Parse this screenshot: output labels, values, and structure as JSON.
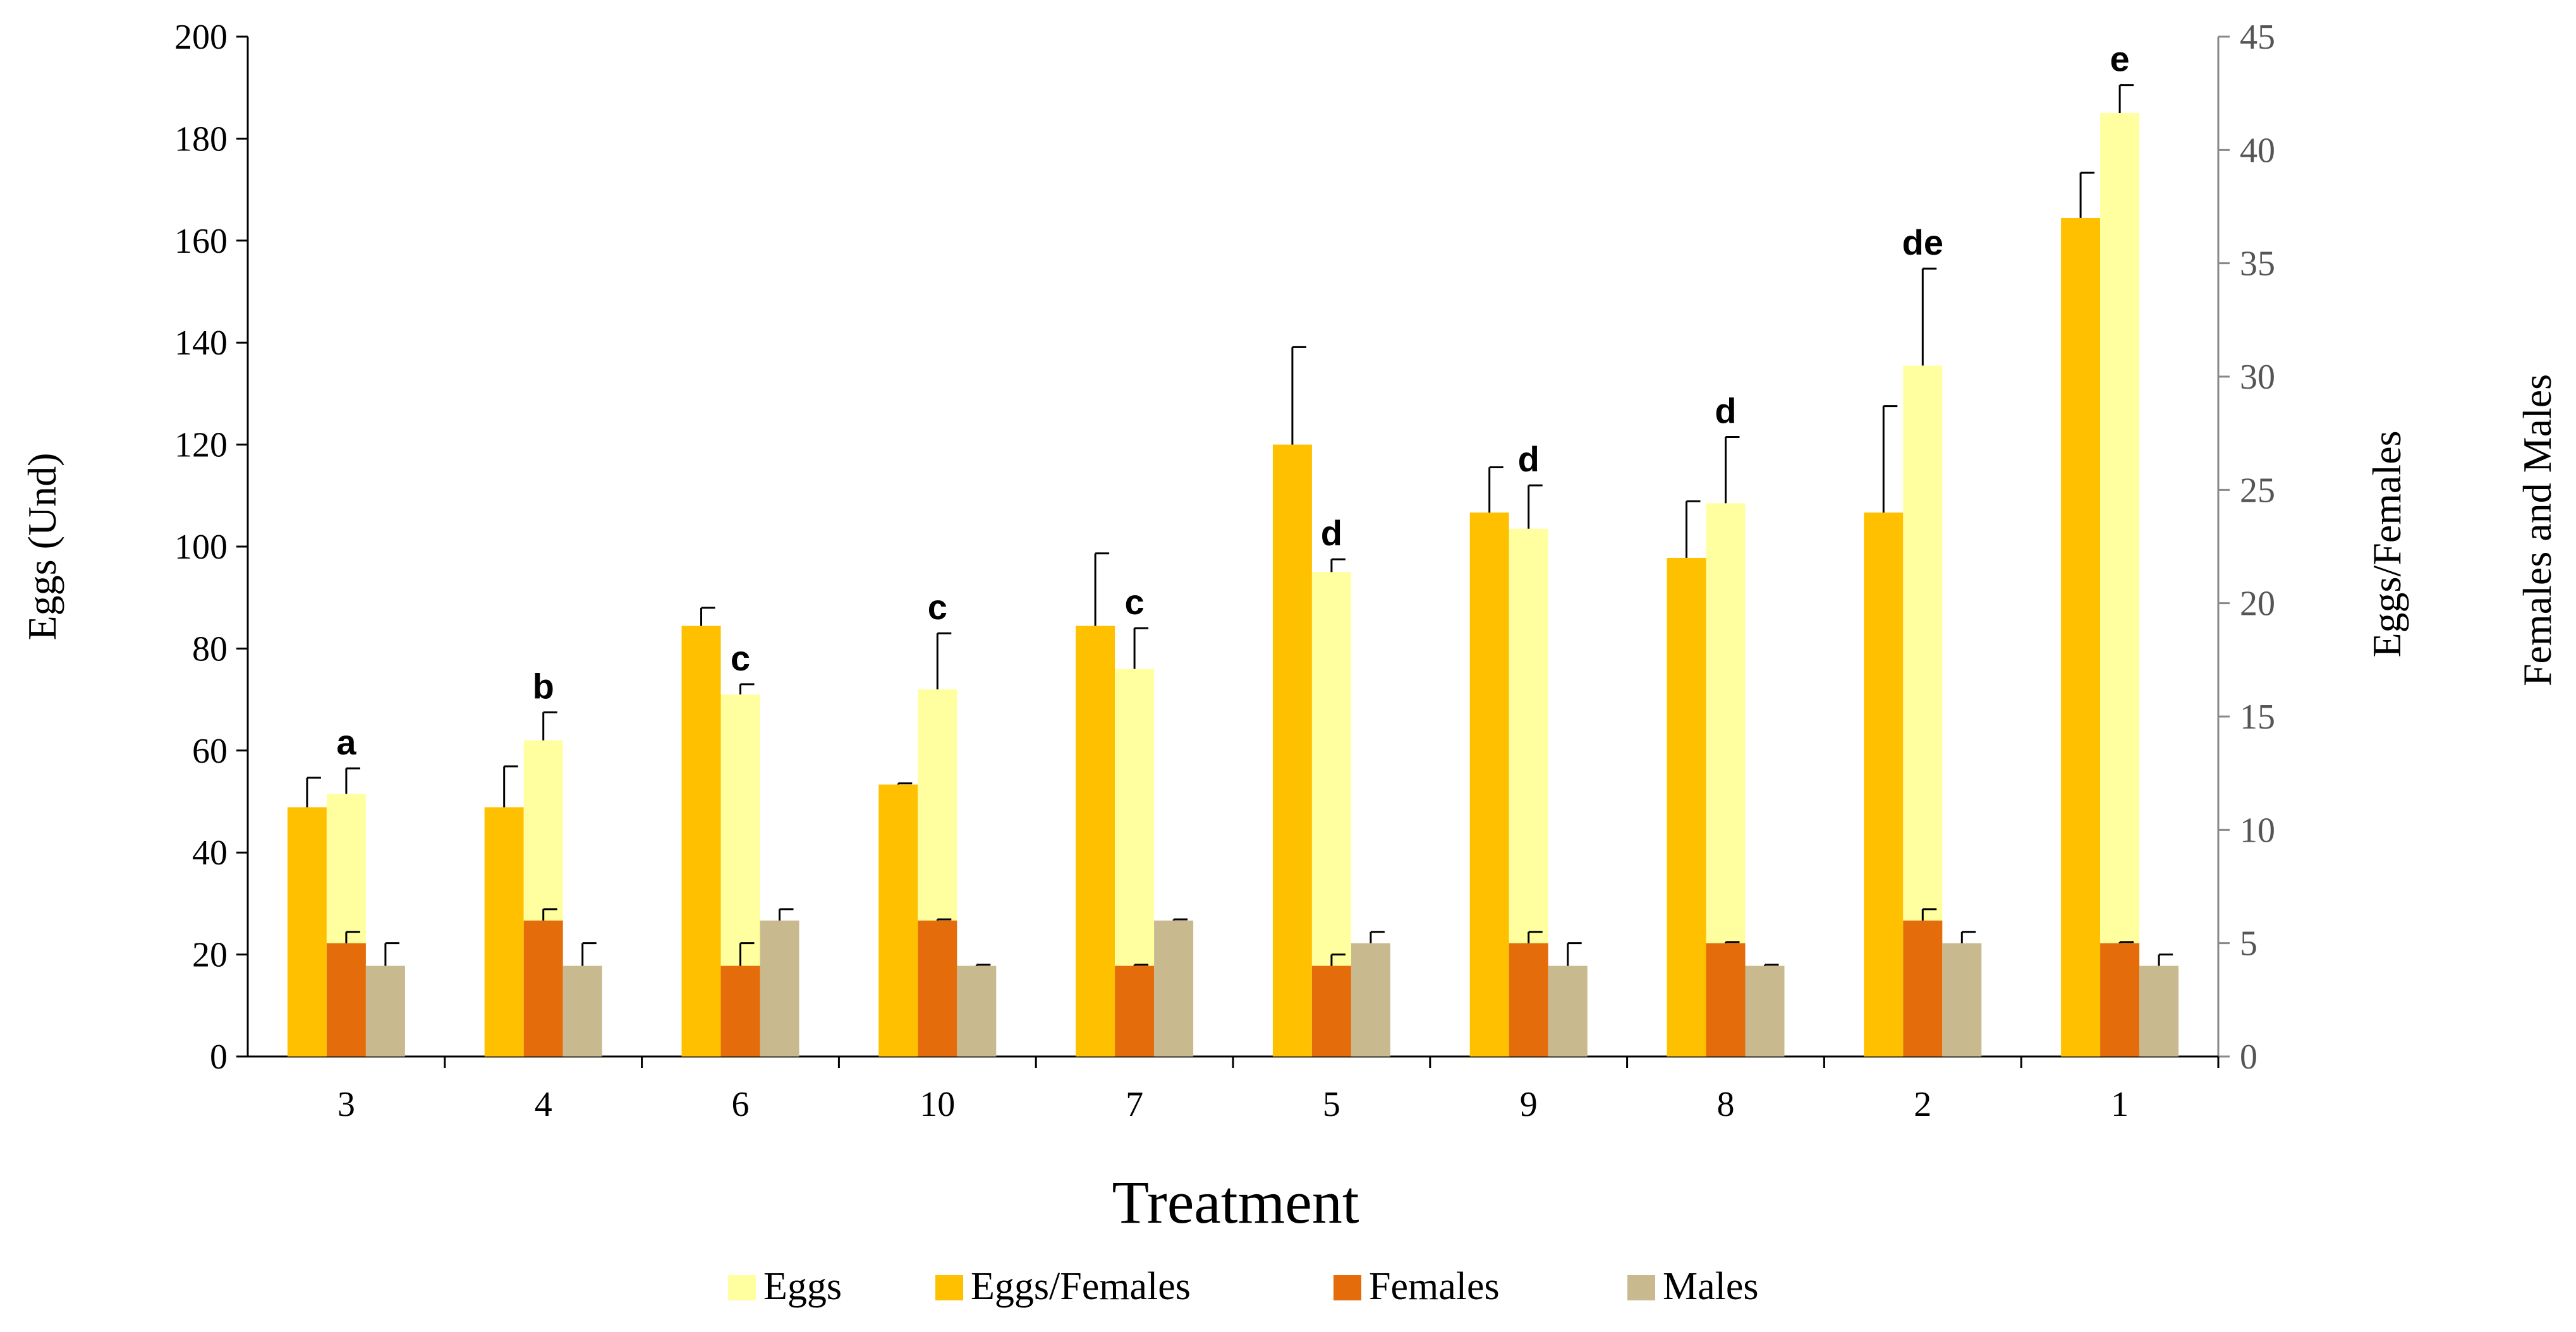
{
  "chart_data": {
    "type": "bar",
    "title": "",
    "xlabel": "Treatment",
    "ylabel_left": "Eggs (Und)",
    "ylabel_right": [
      "Eggs/Females",
      "Females and Males"
    ],
    "ylim_left": [
      0,
      200
    ],
    "ylim_right": [
      0,
      45
    ],
    "yticks_left": [
      "0",
      "20",
      "40",
      "60",
      "80",
      "100",
      "120",
      "140",
      "160",
      "180",
      "200"
    ],
    "yticks_right": [
      "0",
      "5",
      "10",
      "15",
      "20",
      "25",
      "30",
      "35",
      "40",
      "45"
    ],
    "categories": [
      "3",
      "4",
      "6",
      "10",
      "7",
      "5",
      "9",
      "8",
      "2",
      "1"
    ],
    "significance": [
      "a",
      "b",
      "c",
      "c",
      "c",
      "d",
      "d",
      "d",
      "de",
      "e"
    ],
    "series": [
      {
        "name": "Eggs",
        "axis": "left",
        "color": "#FFFF9F",
        "values": [
          51.5,
          62,
          71,
          72,
          76,
          95,
          103.5,
          108.5,
          135.5,
          185
        ],
        "errors": [
          5,
          5.5,
          2,
          11,
          8,
          2.5,
          8.5,
          13,
          19,
          5.5
        ]
      },
      {
        "name": "Eggs/Females",
        "axis": "right",
        "color": "#FFC000",
        "values": [
          11,
          11,
          19,
          12,
          19,
          27,
          24,
          22,
          24,
          37
        ],
        "errors": [
          1.3,
          1.8,
          0.8,
          0.05,
          3.2,
          4.3,
          2,
          2.5,
          4.7,
          2
        ]
      },
      {
        "name": "Females",
        "axis": "right",
        "color": "#E46C0A",
        "values": [
          5,
          6,
          4,
          6,
          4,
          4,
          5,
          5,
          6,
          5
        ],
        "errors": [
          0.5,
          0.5,
          1,
          0.05,
          0.05,
          0.5,
          0.5,
          0.05,
          0.5,
          0.05
        ]
      },
      {
        "name": "Males",
        "axis": "right",
        "color": "#C8B98F",
        "values": [
          4,
          4,
          6,
          4,
          6,
          5,
          4,
          4,
          5,
          4
        ],
        "errors": [
          1,
          1,
          0.5,
          0.05,
          0.05,
          0.5,
          1,
          0.05,
          0.5,
          0.5
        ]
      }
    ],
    "legend": [
      "Eggs",
      "Eggs/Females",
      "Females",
      "Males"
    ],
    "legend_position": "bottom",
    "grid": false
  }
}
